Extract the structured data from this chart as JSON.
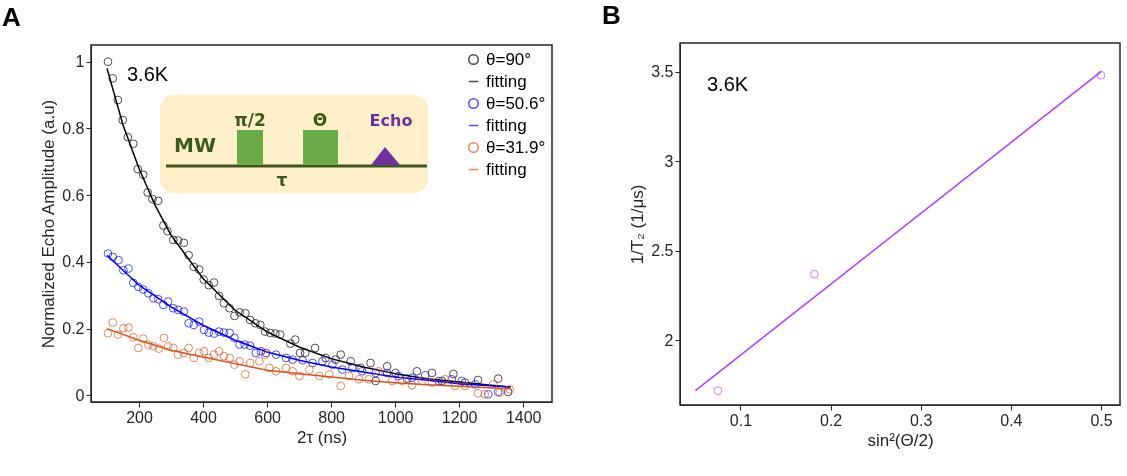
{
  "chart_data": [
    {
      "type": "scatter",
      "title": "A",
      "xlabel": "2τ (ns)",
      "ylabel": "Normalized Echo Amplitude (a.u)",
      "annotations": [
        "3.6K",
        "MW",
        "π/2",
        "Θ",
        "Echo",
        "τ"
      ],
      "xlim": [
        50,
        1490
      ],
      "ylim": [
        -0.02,
        1.05
      ],
      "xticks": [
        200,
        400,
        600,
        800,
        1000,
        1200,
        1400
      ],
      "yticks": [
        0,
        0.2,
        0.4,
        0.6,
        0.8,
        1
      ],
      "legend": "top right",
      "series": [
        {
          "name": "θ=90°",
          "marker": "circle",
          "color": "#000000",
          "x": [
            103,
            118,
            134,
            149,
            165,
            182,
            196,
            213,
            227,
            242,
            260,
            276,
            289,
            307,
            322,
            340,
            355,
            371,
            388,
            402,
            418,
            434,
            450,
            465,
            483,
            498,
            514,
            532,
            547,
            563,
            579,
            594,
            610,
            626,
            641,
            673,
            688,
            703,
            719,
            750,
            783,
            814,
            830,
            861,
            892,
            923,
            939,
            975,
            1001,
            1037,
            1068,
            1115,
            1146,
            1182,
            1218,
            1259,
            1322,
            1353
          ],
          "values": [
            1.0,
            0.95,
            0.885,
            0.825,
            0.774,
            0.754,
            0.678,
            0.661,
            0.608,
            0.588,
            0.583,
            0.509,
            0.492,
            0.466,
            0.464,
            0.457,
            0.42,
            0.385,
            0.377,
            0.347,
            0.33,
            0.338,
            0.298,
            0.276,
            0.261,
            0.238,
            0.249,
            0.246,
            0.226,
            0.216,
            0.211,
            0.191,
            0.187,
            0.185,
            0.182,
            0.155,
            0.167,
            0.127,
            0.127,
            0.142,
            0.112,
            0.107,
            0.122,
            0.102,
            0.082,
            0.097,
            0.043,
            0.087,
            0.067,
            0.05,
            0.072,
            0.067,
            0.043,
            0.064,
            0.038,
            0.046,
            0.05,
            0.01
          ]
        },
        {
          "name": "fitting",
          "type": "line",
          "marker": "none",
          "color": "#000000",
          "x": [
            100,
            150,
            200,
            250,
            300,
            400,
            500,
            600,
            700,
            800,
            900,
            1000,
            1100,
            1200,
            1300,
            1360
          ],
          "values": [
            0.98,
            0.81,
            0.68,
            0.57,
            0.48,
            0.35,
            0.255,
            0.19,
            0.145,
            0.11,
            0.085,
            0.065,
            0.05,
            0.04,
            0.03,
            0.025
          ]
        },
        {
          "name": "θ=50.6°",
          "marker": "circle",
          "color": "#0000ff",
          "x": [
            103,
            118,
            136,
            151,
            167,
            182,
            198,
            213,
            229,
            245,
            260,
            276,
            291,
            307,
            322,
            340,
            355,
            371,
            388,
            403,
            418,
            434,
            450,
            465,
            483,
            498,
            514,
            530,
            547,
            565,
            581,
            597,
            628,
            659,
            680,
            711,
            742,
            773,
            804,
            835,
            866,
            897,
            939,
            975,
            1011,
            1053,
            1094,
            1136,
            1177,
            1208,
            1250,
            1291,
            1322
          ],
          "values": [
            0.425,
            0.415,
            0.405,
            0.375,
            0.38,
            0.337,
            0.325,
            0.317,
            0.306,
            0.291,
            0.288,
            0.271,
            0.281,
            0.261,
            0.256,
            0.251,
            0.216,
            0.211,
            0.221,
            0.196,
            0.188,
            0.185,
            0.191,
            0.188,
            0.187,
            0.172,
            0.152,
            0.152,
            0.149,
            0.127,
            0.132,
            0.127,
            0.122,
            0.112,
            0.107,
            0.105,
            0.097,
            0.102,
            0.092,
            0.077,
            0.082,
            0.072,
            0.067,
            0.067,
            0.058,
            0.053,
            0.06,
            0.043,
            0.048,
            0.043,
            0.033,
            0.003,
            0.01
          ]
        },
        {
          "name": "fitting",
          "type": "line",
          "marker": "none",
          "color": "#0000ff",
          "x": [
            100,
            200,
            300,
            400,
            500,
            600,
            700,
            800,
            900,
            1000,
            1100,
            1200,
            1360
          ],
          "values": [
            0.42,
            0.33,
            0.265,
            0.21,
            0.165,
            0.13,
            0.105,
            0.085,
            0.07,
            0.055,
            0.045,
            0.035,
            0.025
          ]
        },
        {
          "name": "θ=31.9°",
          "marker": "circle",
          "color": "#d95319",
          "x": [
            103,
            118,
            134,
            151,
            167,
            182,
            198,
            213,
            229,
            245,
            262,
            278,
            291,
            307,
            322,
            340,
            355,
            371,
            388,
            403,
            418,
            434,
            450,
            465,
            483,
            498,
            514,
            532,
            547,
            576,
            594,
            607,
            628,
            659,
            680,
            701,
            732,
            763,
            794,
            830,
            856,
            887,
            918,
            949,
            991,
            1022,
            1053,
            1084,
            1115,
            1156,
            1187,
            1218,
            1259,
            1280,
            1306,
            1327,
            1358
          ],
          "values": [
            0.186,
            0.218,
            0.182,
            0.201,
            0.203,
            0.174,
            0.142,
            0.17,
            0.152,
            0.147,
            0.14,
            0.172,
            0.147,
            0.142,
            0.122,
            0.127,
            0.142,
            0.112,
            0.127,
            0.132,
            0.112,
            0.122,
            0.132,
            0.117,
            0.112,
            0.092,
            0.102,
            0.063,
            0.097,
            0.102,
            0.122,
            0.082,
            0.072,
            0.082,
            0.072,
            0.058,
            0.077,
            0.058,
            0.063,
            0.028,
            0.058,
            0.048,
            0.048,
            0.072,
            0.043,
            0.043,
            0.03,
            0.043,
            0.038,
            0.048,
            0.028,
            0.028,
            0.006,
            0.003,
            0.033,
            0.008,
            0.018
          ]
        },
        {
          "name": "fitting",
          "type": "line",
          "marker": "none",
          "color": "#d95319",
          "x": [
            100,
            200,
            300,
            400,
            500,
            600,
            700,
            800,
            900,
            1000,
            1100,
            1200,
            1360
          ],
          "values": [
            0.2,
            0.165,
            0.135,
            0.115,
            0.095,
            0.075,
            0.065,
            0.055,
            0.045,
            0.038,
            0.032,
            0.027,
            0.02
          ]
        }
      ]
    },
    {
      "type": "scatter",
      "title": "B",
      "xlabel": "sin²(Θ/2)",
      "ylabel": "1/T₂ (1/μs)",
      "annotations": [
        "3.6K"
      ],
      "xlim": [
        0.033,
        0.521
      ],
      "ylim": [
        1.64,
        3.66
      ],
      "xticks": [
        0.1,
        0.2,
        0.3,
        0.4,
        0.5
      ],
      "yticks": [
        2,
        2.5,
        3,
        3.5
      ],
      "series": [
        {
          "marker": "circle",
          "color": "#b041ff",
          "x": [
            0.075,
            0.182,
            0.5
          ],
          "values": [
            1.72,
            2.37,
            3.48
          ]
        },
        {
          "type": "line",
          "marker": "none",
          "color": "#b041ff",
          "x": [
            0.05,
            0.5
          ],
          "values": [
            1.72,
            3.5
          ]
        }
      ]
    }
  ]
}
